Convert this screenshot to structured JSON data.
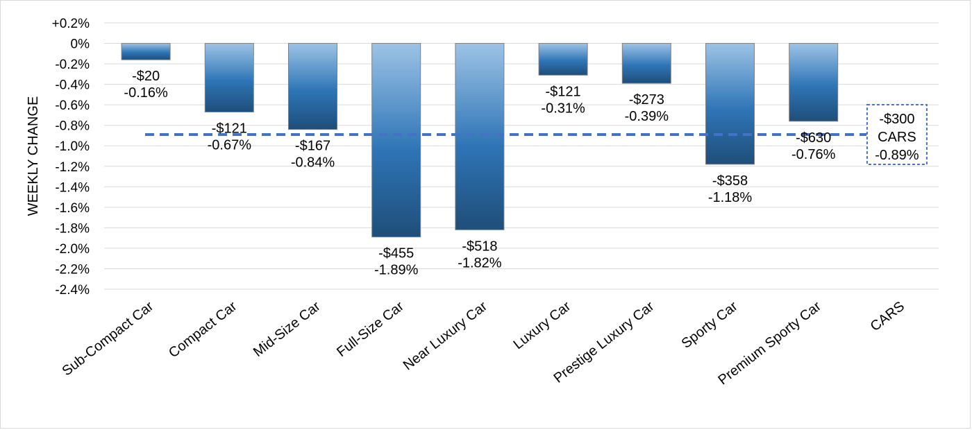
{
  "chart_data": {
    "type": "bar",
    "ylabel": "WEEKLY CHANGE",
    "ylim": [
      -2.4,
      0.2
    ],
    "y_ticks": [
      "+0.2%",
      "0%",
      "-0.2%",
      "-0.4%",
      "-0.6%",
      "-0.8%",
      "-1.0%",
      "-1.2%",
      "-1.4%",
      "-1.6%",
      "-1.8%",
      "-2.0%",
      "-2.2%",
      "-2.4%"
    ],
    "grid": true,
    "categories": [
      "Sub-Compact Car",
      "Compact Car",
      "Mid-Size Car",
      "Full-Size Car",
      "Near Luxury Car",
      "Luxury Car",
      "Prestige Luxury Car",
      "Sporty Car",
      "Premium Sporty Car",
      "CARS"
    ],
    "values": [
      -0.16,
      -0.67,
      -0.84,
      -1.89,
      -1.82,
      -0.31,
      -0.39,
      -1.18,
      -0.76,
      -0.89
    ],
    "dollar_labels": [
      "-$20",
      "-$121",
      "-$167",
      "-$455",
      "-$518",
      "-$121",
      "-$273",
      "-$358",
      "-$630",
      "-$300"
    ],
    "percent_labels": [
      "-0.16%",
      "-0.67%",
      "-0.84%",
      "-1.89%",
      "-1.82%",
      "-0.31%",
      "-0.39%",
      "-1.18%",
      "-0.76%",
      "-0.89%"
    ],
    "average": {
      "value": -0.89,
      "dollar_label": "-$300",
      "name_label": "CARS",
      "percent_label": "-0.89%",
      "style": "dashed",
      "color": "#4472c4"
    },
    "bar_colors": {
      "light": "#9dc3e6",
      "mid": "#2e75b6",
      "dark": "#1f4e79"
    }
  }
}
